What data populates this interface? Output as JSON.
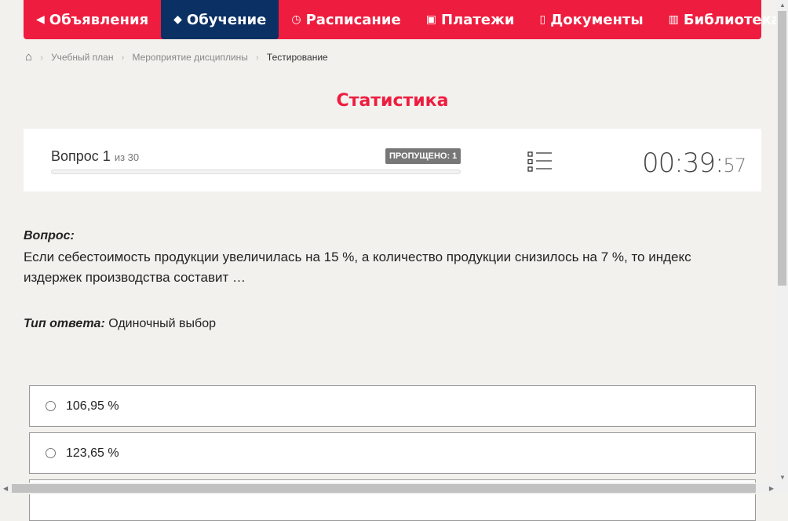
{
  "nav": {
    "items": [
      {
        "label": "Объявления",
        "icon": "megaphone-icon",
        "glyph": "📢"
      },
      {
        "label": "Обучение",
        "icon": "graduation-cap-icon",
        "glyph": "🎓"
      },
      {
        "label": "Расписание",
        "icon": "clock-icon",
        "glyph": "◷"
      },
      {
        "label": "Платежи",
        "icon": "money-icon",
        "glyph": "▣"
      },
      {
        "label": "Документы",
        "icon": "document-icon",
        "glyph": "🗎"
      },
      {
        "label": "Библиотека",
        "icon": "book-icon",
        "glyph": "📖"
      }
    ],
    "active": 1,
    "accent": "#ee1d3f",
    "active_color": "#0a3064"
  },
  "breadcrumb": {
    "items": [
      "Учебный план",
      "Мероприятие дисциплины"
    ],
    "current": "Тестирование"
  },
  "page_title": "Статистика",
  "question_header": {
    "label": "Вопрос 1",
    "of": "из 30",
    "skipped": "ПРОПУЩЕНО: 1",
    "progress": 0,
    "timer_main": "00:39:",
    "timer_sec": "57"
  },
  "question": {
    "label": "Вопрос:",
    "text": "Если себестоимость продукции увеличилась на 15 %, а количество продукции снизилось на 7 %, то индекс издержек производства составит …",
    "answer_type_label": "Тип ответа:",
    "answer_type": "Одиночный выбор"
  },
  "options": [
    "106,95 %",
    "123,65 %"
  ]
}
